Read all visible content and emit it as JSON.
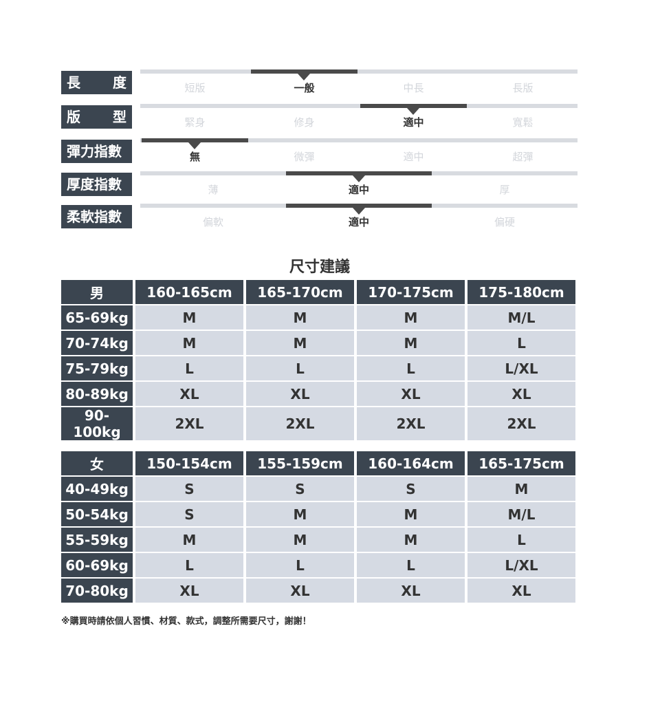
{
  "attributes": [
    {
      "label": [
        "長",
        "度"
      ],
      "options": [
        "短版",
        "一般",
        "中長",
        "長版"
      ],
      "selected": 1
    },
    {
      "label": [
        "版",
        "型"
      ],
      "options": [
        "緊身",
        "修身",
        "適中",
        "寬鬆"
      ],
      "selected": 2
    },
    {
      "label": [
        "彈力指數"
      ],
      "options": [
        "無",
        "微彈",
        "適中",
        "超彈"
      ],
      "selected": 0
    },
    {
      "label": [
        "厚度指數"
      ],
      "options": [
        "薄",
        "適中",
        "厚"
      ],
      "selected": 1
    },
    {
      "label": [
        "柔軟指數"
      ],
      "options": [
        "偏軟",
        "適中",
        "偏硬"
      ],
      "selected": 1
    }
  ],
  "size_title": "尺寸建議",
  "men": {
    "header": "男",
    "columns": [
      "160-165cm",
      "165-170cm",
      "170-175cm",
      "175-180cm"
    ],
    "rows": [
      {
        "weight": "65-69kg",
        "sizes": [
          "M",
          "M",
          "M",
          "M/L"
        ]
      },
      {
        "weight": "70-74kg",
        "sizes": [
          "M",
          "M",
          "M",
          "L"
        ]
      },
      {
        "weight": "75-79kg",
        "sizes": [
          "L",
          "L",
          "L",
          "L/XL"
        ]
      },
      {
        "weight": "80-89kg",
        "sizes": [
          "XL",
          "XL",
          "XL",
          "XL"
        ]
      },
      {
        "weight": "90-100kg",
        "sizes": [
          "2XL",
          "2XL",
          "2XL",
          "2XL"
        ]
      }
    ]
  },
  "women": {
    "header": "女",
    "columns": [
      "150-154cm",
      "155-159cm",
      "160-164cm",
      "165-175cm"
    ],
    "rows": [
      {
        "weight": "40-49kg",
        "sizes": [
          "S",
          "S",
          "S",
          "M"
        ]
      },
      {
        "weight": "50-54kg",
        "sizes": [
          "S",
          "M",
          "M",
          "M/L"
        ]
      },
      {
        "weight": "55-59kg",
        "sizes": [
          "M",
          "M",
          "M",
          "L"
        ]
      },
      {
        "weight": "60-69kg",
        "sizes": [
          "L",
          "L",
          "L",
          "L/XL"
        ]
      },
      {
        "weight": "70-80kg",
        "sizes": [
          "XL",
          "XL",
          "XL",
          "XL"
        ]
      }
    ]
  },
  "note": "※購買時請依個人習慣、材質、款式，調整所需要尺寸，謝謝！",
  "colors": {
    "dark": "#3b4550",
    "bar_active": "#4a4a4a",
    "bar_inactive": "#d8dbe0",
    "cell": "#d5dae3"
  }
}
